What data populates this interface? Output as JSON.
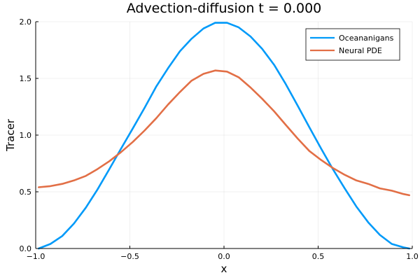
{
  "chart_data": {
    "type": "line",
    "title": "Advection-diffusion t = 0.000",
    "xlabel": "x",
    "ylabel": "Tracer",
    "xlim": [
      -1.0,
      1.0
    ],
    "ylim": [
      0.0,
      2.0
    ],
    "xticks": [
      -1.0,
      -0.5,
      0.0,
      0.5,
      1.0
    ],
    "xtick_labels": [
      "−1.0",
      "−0.5",
      "0.0",
      "0.5",
      "1.0"
    ],
    "yticks": [
      0.0,
      0.5,
      1.0,
      1.5,
      2.0
    ],
    "ytick_labels": [
      "0.0",
      "0.5",
      "1.0",
      "1.5",
      "2.0"
    ],
    "grid": true,
    "legend_position": "top-right",
    "x": [
      -0.984,
      -0.922,
      -0.859,
      -0.797,
      -0.734,
      -0.672,
      -0.609,
      -0.547,
      -0.484,
      -0.422,
      -0.359,
      -0.297,
      -0.234,
      -0.172,
      -0.109,
      -0.047,
      0.016,
      0.078,
      0.141,
      0.203,
      0.266,
      0.328,
      0.391,
      0.453,
      0.516,
      0.578,
      0.641,
      0.703,
      0.766,
      0.828,
      0.891,
      0.953,
      0.984
    ],
    "series": [
      {
        "name": "Oceananigans",
        "color": "#009af9",
        "values": [
          0.0,
          0.04,
          0.11,
          0.22,
          0.36,
          0.52,
          0.7,
          0.88,
          1.06,
          1.24,
          1.43,
          1.59,
          1.74,
          1.85,
          1.94,
          1.99,
          1.99,
          1.95,
          1.87,
          1.76,
          1.62,
          1.45,
          1.26,
          1.07,
          0.88,
          0.7,
          0.53,
          0.37,
          0.23,
          0.12,
          0.04,
          0.01,
          0.0
        ]
      },
      {
        "name": "Neural PDE",
        "color": "#e26f46",
        "values": [
          0.54,
          0.55,
          0.57,
          0.6,
          0.64,
          0.7,
          0.77,
          0.85,
          0.94,
          1.04,
          1.15,
          1.27,
          1.38,
          1.48,
          1.54,
          1.57,
          1.56,
          1.51,
          1.42,
          1.32,
          1.21,
          1.09,
          0.97,
          0.86,
          0.78,
          0.71,
          0.65,
          0.6,
          0.57,
          0.53,
          0.51,
          0.48,
          0.47
        ]
      }
    ]
  }
}
